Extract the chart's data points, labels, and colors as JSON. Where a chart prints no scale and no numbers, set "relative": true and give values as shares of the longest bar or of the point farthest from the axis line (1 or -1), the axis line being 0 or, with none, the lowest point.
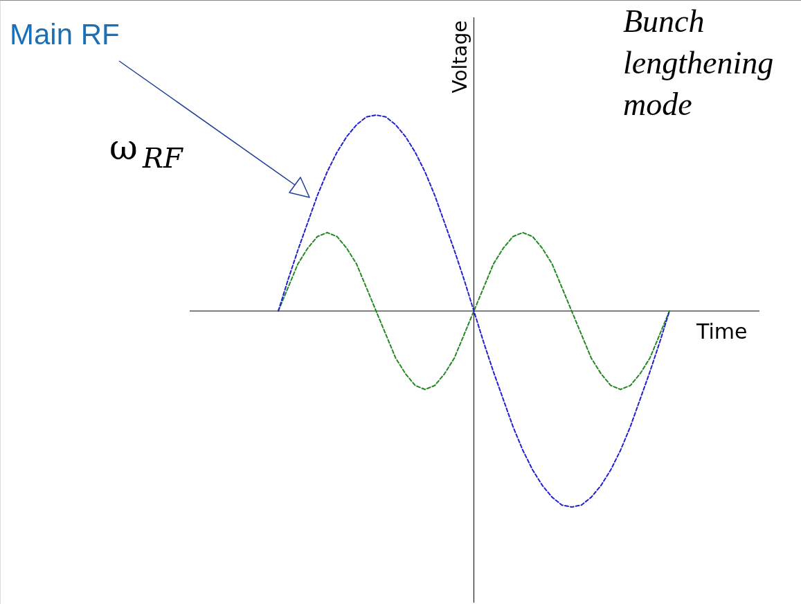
{
  "chart_data": {
    "type": "line",
    "relative": true,
    "xlabel": "Time",
    "ylabel": "Voltage",
    "categories": [
      null,
      null,
      null,
      null,
      null,
      null,
      null,
      null,
      null,
      null,
      null,
      null,
      null,
      null,
      null,
      null,
      null,
      null,
      null,
      null,
      null,
      null,
      null,
      null,
      null,
      null,
      null,
      null,
      null,
      null,
      null,
      null,
      null,
      null,
      null,
      null,
      null,
      null,
      null,
      null,
      null
    ],
    "series": [
      {
        "name": "Main RF",
        "color": "#2020d0",
        "values": [
          0,
          0.16,
          0.31,
          0.45,
          0.59,
          0.71,
          0.81,
          0.89,
          0.95,
          0.99,
          1,
          0.99,
          0.95,
          0.89,
          0.81,
          0.71,
          0.59,
          0.45,
          0.31,
          0.16,
          0,
          -0.16,
          -0.31,
          -0.45,
          -0.59,
          -0.71,
          -0.81,
          -0.89,
          -0.95,
          -0.99,
          -1,
          -0.99,
          -0.95,
          -0.89,
          -0.81,
          -0.71,
          -0.59,
          -0.45,
          -0.31,
          -0.16,
          0
        ]
      },
      {
        "color": "#228822",
        "values": [
          0,
          0.12,
          0.24,
          0.32,
          0.38,
          0.4,
          0.38,
          0.32,
          0.24,
          0.12,
          0,
          -0.12,
          -0.24,
          -0.32,
          -0.38,
          -0.4,
          -0.38,
          -0.32,
          -0.24,
          -0.12,
          0,
          0.12,
          0.24,
          0.32,
          0.38,
          0.4,
          0.38,
          0.32,
          0.24,
          0.12,
          0,
          -0.12,
          -0.24,
          -0.32,
          -0.38,
          -0.4,
          -0.38,
          -0.32,
          -0.24,
          -0.12,
          0
        ]
      }
    ],
    "annotations": [
      "ω$_{RF}$",
      "Bunch lengthening mode"
    ],
    "line_style": "dashed",
    "grid": false
  }
}
